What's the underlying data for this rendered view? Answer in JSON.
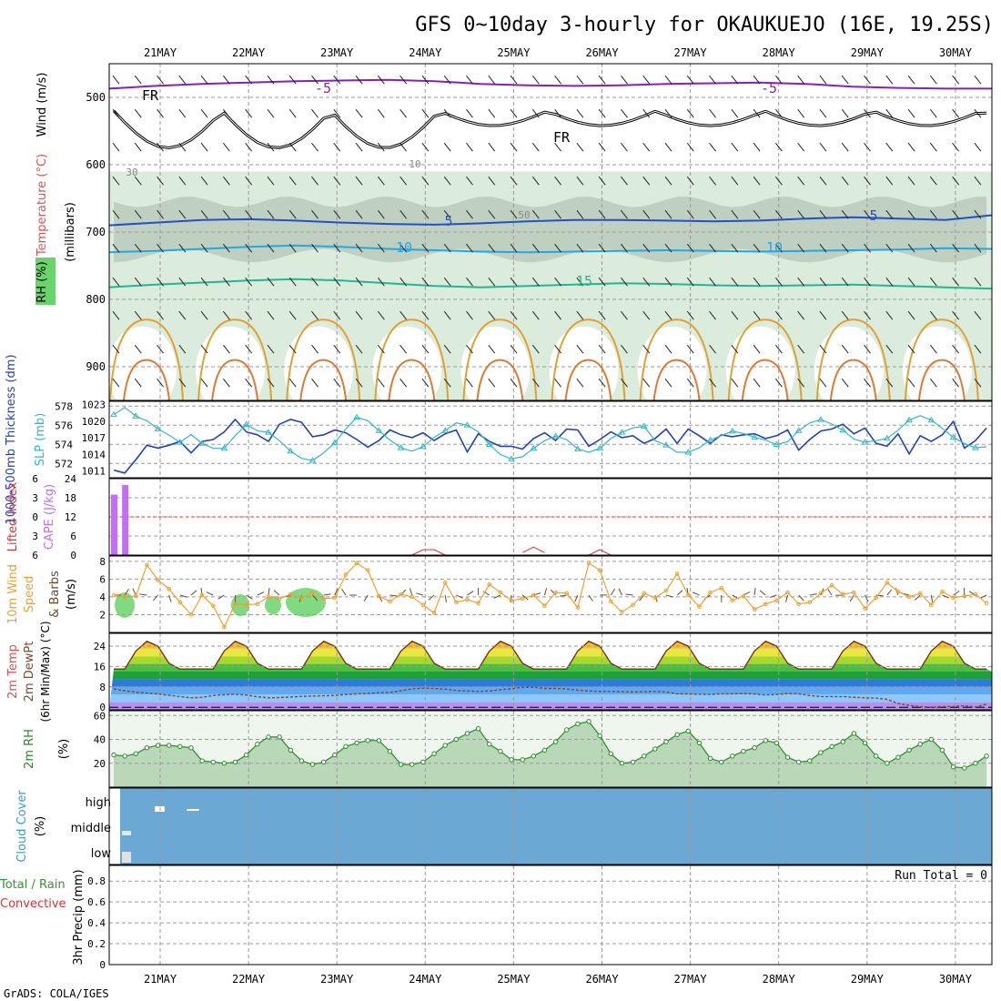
{
  "chart_data": {
    "type": "line",
    "title": "GFS 0~10day 3-hourly for OKAUKUEJO (16E, 19.25S)",
    "footer": "GrADS: COLA/IGES",
    "dates": [
      "21MAY",
      "22MAY",
      "23MAY",
      "24MAY",
      "25MAY",
      "26MAY",
      "27MAY",
      "28MAY",
      "29MAY",
      "30MAY"
    ],
    "colors": {
      "grid": "#9a9a9a",
      "rh_fill": "#dcecdc",
      "rh_dark": "#b7c7b7",
      "rain": "#3a9a3a",
      "convective": "#e03030"
    },
    "panels": {
      "profile": {
        "label_wind": "Wind (m/s)",
        "label_temp": "Temperature (°C)",
        "label_rh": "RH (%)",
        "label_units": "(millibars)",
        "y_ticks": [
          500,
          600,
          700,
          800,
          900
        ],
        "ylim": [
          1000,
          450
        ],
        "contour_labels": [
          "FR",
          "FR",
          "-5",
          "-5",
          "5",
          "5",
          "10",
          "10",
          "15",
          "30",
          "50",
          "10"
        ],
        "temp_isotherms": [
          {
            "name": "-5",
            "y": [
              487,
              483,
              480,
              478,
              476,
              475,
              474,
              476,
              480,
              482,
              483,
              482,
              480,
              479,
              478,
              480,
              484,
              486,
              487,
              487
            ],
            "color": "#8a1fb5"
          },
          {
            "name": "5",
            "y": [
              690,
              686,
              682,
              681,
              683,
              686,
              688,
              689,
              687,
              684,
              682,
              682,
              683,
              684,
              683,
              680,
              678,
              680,
              682,
              675
            ],
            "color": "#2050d0"
          },
          {
            "name": "10",
            "y": [
              730,
              728,
              725,
              722,
              720,
              722,
              725,
              727,
              729,
              730,
              729,
              728,
              727,
              728,
              729,
              728,
              727,
              726,
              724,
              725
            ],
            "color": "#20a8e8"
          },
          {
            "name": "15",
            "y": [
              782,
              778,
              775,
              772,
              770,
              772,
              776,
              780,
              782,
              780,
              778,
              776,
              777,
              779,
              780,
              779,
              778,
              780,
              782,
              784
            ],
            "color": "#20b890"
          }
        ]
      },
      "slp": {
        "left_label": "1000-500mb Thickness (dm)",
        "right_label": "SLP (mb)",
        "thickness_ticks": [
          572,
          574,
          576,
          578
        ],
        "slp_ticks": [
          1011,
          1014,
          1017,
          1020,
          1023
        ],
        "thickness_ylim": [
          570.5,
          578.5
        ],
        "slp_ylim": [
          1009.8,
          1023.6
        ],
        "thickness": [
          571.3,
          571.0,
          572.4,
          573.9,
          573.6,
          573.9,
          574.3,
          573.1,
          574.3,
          574.5,
          575.3,
          576.6,
          575.3,
          575.0,
          574.3,
          576.1,
          576.6,
          576.3,
          574.8,
          575.0,
          575.5,
          575.2,
          574.5,
          573.7,
          574.4,
          575.5,
          575.0,
          574.7,
          575.2,
          574.4,
          575.1,
          575.5,
          573.2,
          575.1,
          574.3,
          573.8,
          573.8,
          573.5,
          574.6,
          575.2,
          574.4,
          575.6,
          575.5,
          573.8,
          574.5,
          575.3,
          574.7,
          574.9,
          574.1,
          574.6,
          575.6,
          574.1,
          575.6,
          574.9,
          574.1,
          575.0,
          574.8,
          575.0,
          575.1,
          574.6,
          574.9,
          575.5,
          573.4,
          574.5,
          575.4,
          575.6,
          576.1,
          575.1,
          575.7,
          574.1,
          573.8,
          575.1,
          573.0,
          574.9,
          574.3,
          575.0,
          576.4,
          573.6,
          574.4,
          575.7
        ],
        "slp": [
          1021.2,
          1022.5,
          1020.9,
          1020.1,
          1018.6,
          1017.5,
          1016.2,
          1017.6,
          1016.0,
          1015.1,
          1015.1,
          1017.4,
          1019.4,
          1018.3,
          1018.0,
          1016.5,
          1014.6,
          1013.3,
          1012.9,
          1014.3,
          1016.1,
          1018.6,
          1020.7,
          1020.1,
          1018.3,
          1016.6,
          1015.2,
          1014.6,
          1015.4,
          1017.1,
          1018.3,
          1019.7,
          1019.3,
          1018.1,
          1015.8,
          1014.0,
          1013.2,
          1013.6,
          1015.1,
          1016.5,
          1017.3,
          1016.7,
          1015.0,
          1014.4,
          1015.1,
          1016.9,
          1018.0,
          1018.8,
          1019.1,
          1016.5,
          1015.7,
          1014.4,
          1014.4,
          1015.2,
          1016.6,
          1017.4,
          1018.2,
          1017.8,
          1017.1,
          1016.6,
          1015.8,
          1016.3,
          1018.3,
          1019.7,
          1020.3,
          1019.5,
          1018.4,
          1016.8,
          1016.2,
          1016.5,
          1016.9,
          1018.4,
          1020.2,
          1021.0,
          1020.2,
          1018.7,
          1017.1,
          1016.0,
          1015.2,
          1015.4
        ]
      },
      "cape": {
        "left_label": "Lifted Index",
        "right_label": "CAPE (J/kg)",
        "li_ticks": [
          -6,
          -3,
          0,
          3,
          6
        ],
        "cape_ticks": [
          24,
          18,
          12,
          6,
          0
        ],
        "cape_ylim": [
          0,
          24
        ],
        "cape_bars": [
          {
            "i": 0,
            "v": 19
          },
          {
            "i": 1,
            "v": 22
          }
        ],
        "li_segments": [
          [
            27,
            30,
            6.0
          ],
          [
            37,
            39,
            5.6
          ],
          [
            43,
            45,
            6.0
          ]
        ]
      },
      "wind10m": {
        "label_main": "10m Wind",
        "label_sub": "Speed",
        "label_barb": "& Barbs",
        "label_units": "(m/s)",
        "y_ticks": [
          2,
          4,
          6,
          8
        ],
        "ylim": [
          0,
          8.6
        ],
        "speed": [
          4.2,
          4.0,
          4.1,
          7.6,
          5.9,
          4.9,
          3.4,
          2.0,
          4.2,
          3.0,
          0.6,
          3.2,
          3.1,
          3.2,
          4.0,
          3.8,
          4.3,
          3.9,
          4.5,
          3.8,
          3.9,
          6.5,
          7.8,
          7.0,
          4.1,
          3.5,
          4.3,
          4.0,
          3.1,
          2.2,
          5.6,
          3.4,
          3.7,
          3.3,
          5.4,
          4.5,
          3.6,
          3.8,
          4.2,
          3.0,
          4.5,
          4.4,
          2.8,
          7.8,
          7.0,
          3.5,
          2.3,
          3.1,
          4.4,
          3.9,
          4.7,
          6.6,
          4.2,
          2.9,
          4.5,
          5.0,
          3.6,
          4.1,
          2.6,
          3.2,
          3.6,
          4.5,
          3.2,
          3.4,
          4.4,
          5.3,
          4.3,
          4.5,
          2.7,
          3.9,
          5.6,
          4.6,
          4.0,
          4.4,
          3.1,
          4.6,
          3.9,
          4.1,
          4.3,
          3.3
        ]
      },
      "temp2m": {
        "label_main": "2m Temp",
        "label_sub": "2m DewPt",
        "label_units": "(6hr Min/Max) (°C)",
        "y_ticks": [
          0,
          8,
          16,
          24
        ],
        "ylim": [
          -1,
          29
        ],
        "temp_max": [
          26,
          26,
          26,
          26,
          26,
          26,
          26,
          26,
          26,
          26
        ],
        "temp_min": [
          15,
          14,
          14,
          14,
          14,
          14,
          14,
          14,
          14,
          14
        ],
        "dewpoint": [
          7.2,
          6.5,
          5.9,
          5.6,
          5.2,
          4.7,
          4.2,
          3.7,
          3.9,
          4.6,
          4.9,
          5.1,
          4.8,
          4.1,
          3.7,
          3.8,
          4.0,
          4.3,
          4.4,
          4.5,
          4.6,
          5.0,
          5.3,
          5.4,
          5.7,
          5.8,
          6.5,
          7.2,
          7.5,
          7.4,
          7.1,
          6.6,
          6.4,
          6.2,
          6.4,
          6.9,
          7.3,
          7.8,
          7.9,
          7.4,
          7.4,
          7.2,
          6.7,
          6.4,
          6.2,
          6.2,
          6.1,
          6.0,
          6.1,
          6.2,
          6.0,
          5.3,
          5.2,
          5.1,
          5.0,
          5.3,
          5.3,
          5.4,
          5.2,
          4.8,
          5.0,
          5.4,
          5.3,
          4.6,
          4.2,
          4.2,
          4.2,
          3.9,
          3.7,
          3.6,
          3.1,
          1.5,
          0.7,
          0.2,
          0.0,
          0.3,
          0.3,
          0.6,
          0.1,
          1.2
        ]
      },
      "rh2m": {
        "label_main": "2m RH",
        "label_units": "(%)",
        "y_ticks": [
          20,
          40,
          60
        ],
        "ylim": [
          0,
          64
        ],
        "rh": [
          27,
          26,
          28,
          33,
          35,
          35,
          34,
          33,
          22,
          21,
          20,
          21,
          27,
          36,
          42,
          42,
          31,
          22,
          19,
          21,
          27,
          34,
          37,
          39,
          39,
          30,
          19,
          19,
          21,
          28,
          35,
          40,
          45,
          49,
          36,
          30,
          23,
          23,
          26,
          31,
          38,
          48,
          53,
          55,
          43,
          28,
          20,
          21,
          26,
          32,
          38,
          44,
          47,
          37,
          24,
          21,
          26,
          30,
          33,
          39,
          37,
          25,
          21,
          22,
          29,
          34,
          38,
          45,
          37,
          26,
          20,
          25,
          31,
          36,
          40,
          31,
          17,
          16,
          20,
          26
        ]
      },
      "cloud": {
        "label_main": "Cloud Cover",
        "label_units": "(%)",
        "levels": [
          "high",
          "middle",
          "low"
        ],
        "bg_color": "#6ba8d4"
      },
      "precip": {
        "label_main": "Total / Rain",
        "label_sub": "Convective",
        "label_units": "3hr Precip (mm)",
        "y_ticks": [
          0,
          0.2,
          0.4,
          0.6,
          0.8
        ],
        "ylim": [
          0,
          0.95
        ],
        "run_total": "Run Total = 0",
        "values": []
      }
    }
  }
}
